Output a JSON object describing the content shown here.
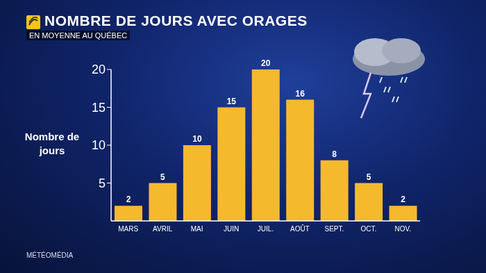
{
  "chart_data": {
    "type": "bar",
    "title": "NOMBRE DE JOURS AVEC ORAGES",
    "subtitle": "EN MOYENNE AU QUÉBEC",
    "y_label": "Nombre de jours",
    "annotations": [
      "MÉTÉOMÉDIA"
    ],
    "categories": [
      "MARS",
      "AVRIL",
      "MAI",
      "JUIN",
      "JUIL.",
      "AOÛT",
      "SEPT.",
      "OCT.",
      "NOV."
    ],
    "values": [
      2,
      5,
      10,
      15,
      20,
      16,
      8,
      5,
      2
    ],
    "color": "#f5b92e",
    "ylim": [
      0,
      20
    ],
    "yticks": [
      5,
      10,
      15,
      20
    ],
    "grid": false,
    "data_labels": true
  }
}
